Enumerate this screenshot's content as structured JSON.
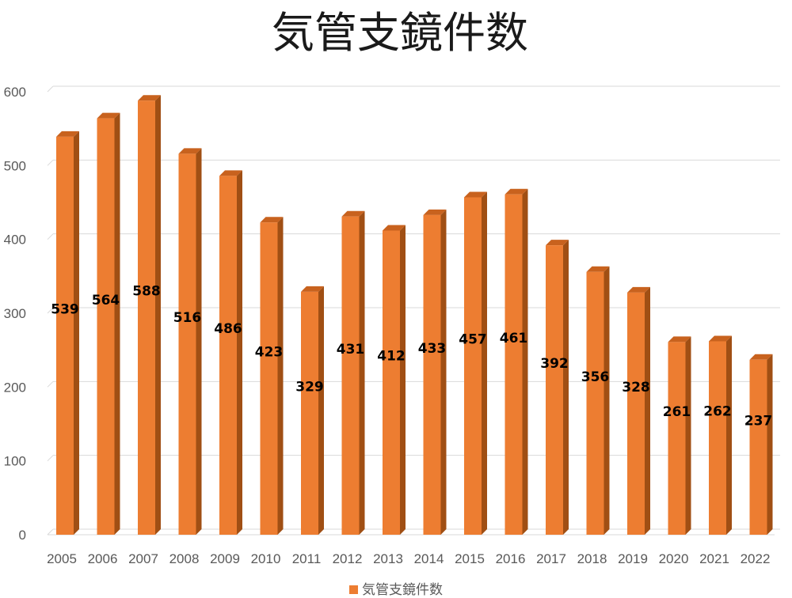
{
  "chart_data": {
    "type": "bar",
    "title": "気管支鏡件数",
    "categories": [
      "2005",
      "2006",
      "2007",
      "2008",
      "2009",
      "2010",
      "2011",
      "2012",
      "2013",
      "2014",
      "2015",
      "2016",
      "2017",
      "2018",
      "2019",
      "2020",
      "2021",
      "2022"
    ],
    "series": [
      {
        "name": "気管支鏡件数",
        "values": [
          539,
          564,
          588,
          516,
          486,
          423,
          329,
          431,
          412,
          433,
          457,
          461,
          392,
          356,
          328,
          261,
          262,
          237
        ]
      }
    ],
    "ylim": [
      0,
      600
    ],
    "yticks": [
      0,
      100,
      200,
      300,
      400,
      500,
      600
    ],
    "grid": true,
    "legend_position": "bottom",
    "style": "3d-column",
    "colors": {
      "bar_front": "#ed7d31",
      "bar_side": "#a04f14",
      "bar_top": "#c8621e"
    }
  }
}
